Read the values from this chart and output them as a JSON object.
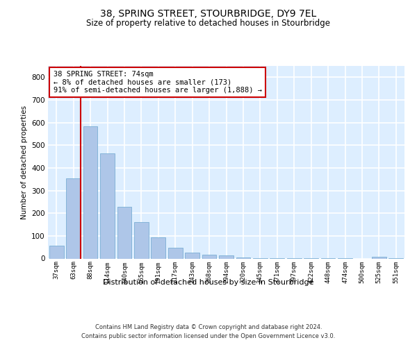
{
  "title": "38, SPRING STREET, STOURBRIDGE, DY9 7EL",
  "subtitle": "Size of property relative to detached houses in Stourbridge",
  "xlabel": "Distribution of detached houses by size in Stourbridge",
  "ylabel": "Number of detached properties",
  "categories": [
    "37sqm",
    "63sqm",
    "88sqm",
    "114sqm",
    "140sqm",
    "165sqm",
    "191sqm",
    "217sqm",
    "243sqm",
    "268sqm",
    "294sqm",
    "320sqm",
    "345sqm",
    "371sqm",
    "397sqm",
    "422sqm",
    "448sqm",
    "474sqm",
    "500sqm",
    "525sqm",
    "551sqm"
  ],
  "values": [
    57,
    355,
    585,
    463,
    228,
    160,
    93,
    47,
    25,
    18,
    13,
    5,
    3,
    2,
    2,
    1,
    1,
    1,
    0,
    8,
    3
  ],
  "bar_color": "#aec6e8",
  "bar_edgecolor": "#7aafd4",
  "property_line_x": 1,
  "annotation_text": "38 SPRING STREET: 74sqm\n← 8% of detached houses are smaller (173)\n91% of semi-detached houses are larger (1,888) →",
  "ylim": [
    0,
    850
  ],
  "yticks": [
    0,
    100,
    200,
    300,
    400,
    500,
    600,
    700,
    800
  ],
  "background_color": "#ffffff",
  "plot_bg_color": "#ddeeff",
  "grid_color": "#ffffff",
  "footer_line1": "Contains HM Land Registry data © Crown copyright and database right 2024.",
  "footer_line2": "Contains public sector information licensed under the Open Government Licence v3.0.",
  "title_fontsize": 10,
  "subtitle_fontsize": 8.5,
  "annotation_box_color": "#ffffff",
  "annotation_box_edgecolor": "#cc0000",
  "property_line_color": "#cc0000"
}
